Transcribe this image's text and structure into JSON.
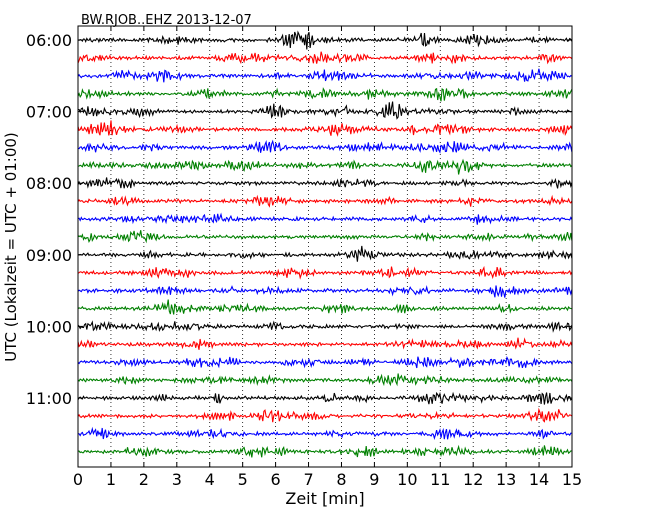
{
  "chart_data": {
    "type": "line",
    "title": "BW.RJOB..EHZ 2013-12-07",
    "xlabel": "Zeit  [min]",
    "ylabel": "UTC (Lokalzeit = UTC + 01:00)",
    "xlim": [
      0,
      15
    ],
    "xticks": [
      0,
      1,
      2,
      3,
      4,
      5,
      6,
      7,
      8,
      9,
      10,
      11,
      12,
      13,
      14,
      15
    ],
    "yticklabels": [
      "06:00",
      "07:00",
      "08:00",
      "09:00",
      "10:00",
      "11:00"
    ],
    "ylim_start": "06:00",
    "trace_minutes": 15,
    "series_colors": [
      "#000000",
      "#ff0000",
      "#0000ff",
      "#008000"
    ],
    "traces": [
      {
        "start": "06:00",
        "color": "#000000"
      },
      {
        "start": "06:15",
        "color": "#ff0000"
      },
      {
        "start": "06:30",
        "color": "#0000ff"
      },
      {
        "start": "06:45",
        "color": "#008000"
      },
      {
        "start": "07:00",
        "color": "#000000"
      },
      {
        "start": "07:15",
        "color": "#ff0000"
      },
      {
        "start": "07:30",
        "color": "#0000ff"
      },
      {
        "start": "07:45",
        "color": "#008000"
      },
      {
        "start": "08:00",
        "color": "#000000"
      },
      {
        "start": "08:15",
        "color": "#ff0000"
      },
      {
        "start": "08:30",
        "color": "#0000ff"
      },
      {
        "start": "08:45",
        "color": "#008000"
      },
      {
        "start": "09:00",
        "color": "#000000"
      },
      {
        "start": "09:15",
        "color": "#ff0000"
      },
      {
        "start": "09:30",
        "color": "#0000ff"
      },
      {
        "start": "09:45",
        "color": "#008000"
      },
      {
        "start": "10:00",
        "color": "#000000"
      },
      {
        "start": "10:15",
        "color": "#ff0000"
      },
      {
        "start": "10:30",
        "color": "#0000ff"
      },
      {
        "start": "10:45",
        "color": "#008000"
      },
      {
        "start": "11:00",
        "color": "#000000"
      },
      {
        "start": "11:15",
        "color": "#ff0000"
      },
      {
        "start": "11:30",
        "color": "#0000ff"
      },
      {
        "start": "11:45",
        "color": "#008000"
      }
    ],
    "grid": "vertical dotted",
    "legend": "none"
  }
}
